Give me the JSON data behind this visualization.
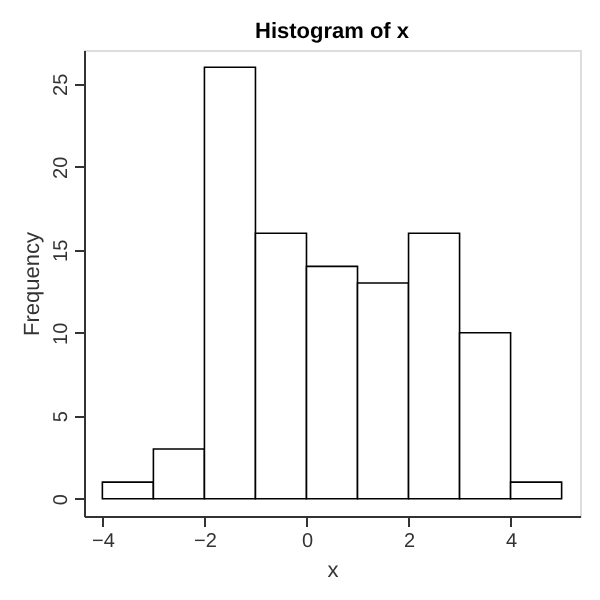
{
  "chart_data": {
    "type": "histogram",
    "title": "Histogram of x",
    "xlabel": "x",
    "ylabel": "Frequency",
    "bins": [
      -4,
      -3,
      -2,
      -1,
      0,
      1,
      2,
      3,
      4,
      5
    ],
    "values": [
      1,
      3,
      26,
      16,
      14,
      13,
      16,
      10,
      1
    ],
    "color": "#ffffff",
    "xlim": [
      -4.36,
      5.36
    ],
    "ylim": [
      -1.04,
      27.04
    ],
    "xticks": [
      -4,
      -2,
      0,
      2,
      4
    ],
    "yticks": [
      0,
      5,
      10,
      15,
      20,
      25
    ],
    "grid": false
  }
}
